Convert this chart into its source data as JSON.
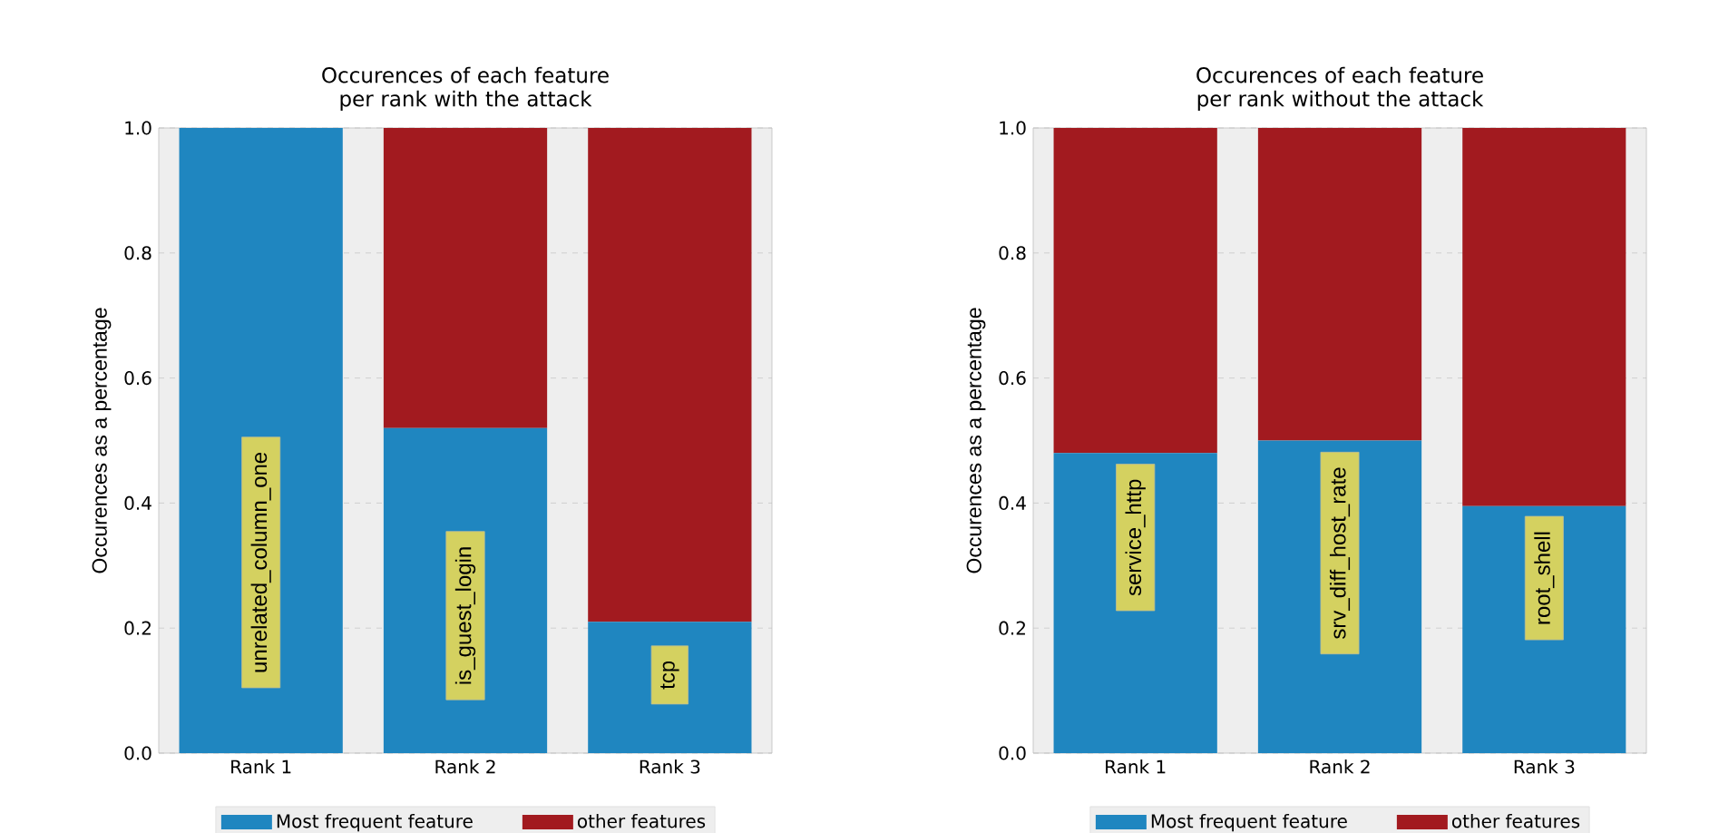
{
  "chart_data": [
    {
      "type": "bar",
      "stacked": true,
      "title": "Occurences of each feature per rank with the attack",
      "ylabel": "Occurences as a percentage",
      "categories": [
        "Rank 1",
        "Rank 2",
        "Rank 3"
      ],
      "series": [
        {
          "name": "Most frequent feature",
          "color": "#1f86c0",
          "values": [
            1.0,
            0.52,
            0.21
          ]
        },
        {
          "name": "other features",
          "color": "#a21a1f",
          "values": [
            0.0,
            0.48,
            0.79
          ]
        }
      ],
      "ylim": [
        0,
        1
      ],
      "yticks": [
        {
          "value": 0,
          "label": "0.0"
        },
        {
          "value": 0.2,
          "label": "0.2"
        },
        {
          "value": 0.4,
          "label": "0.4"
        },
        {
          "value": 0.6,
          "label": "0.6"
        },
        {
          "value": 0.8,
          "label": "0.8"
        },
        {
          "value": 1,
          "label": "1.0"
        }
      ],
      "annotations": [
        "unrelated_column_one",
        "is_guest_login",
        "tcp"
      ],
      "grid": true,
      "legend": "bottom"
    },
    {
      "type": "bar",
      "stacked": true,
      "title": "Occurences of each feature per rank without the attack",
      "ylabel": "Occurences as a percentage",
      "categories": [
        "Rank 1",
        "Rank 2",
        "Rank 3"
      ],
      "series": [
        {
          "name": "Most frequent feature",
          "color": "#1f86c0",
          "values": [
            0.48,
            0.5,
            0.395
          ]
        },
        {
          "name": "other features",
          "color": "#a21a1f",
          "values": [
            0.52,
            0.5,
            0.605
          ]
        }
      ],
      "ylim": [
        0,
        1
      ],
      "yticks": [
        {
          "value": 0,
          "label": "0.0"
        },
        {
          "value": 0.2,
          "label": "0.2"
        },
        {
          "value": 0.4,
          "label": "0.4"
        },
        {
          "value": 0.6,
          "label": "0.6"
        },
        {
          "value": 0.8,
          "label": "0.8"
        },
        {
          "value": 1,
          "label": "1.0"
        }
      ],
      "annotations": [
        "service_http",
        "srv_diff_host_rate",
        "root_shell"
      ],
      "grid": true,
      "legend": "bottom"
    }
  ]
}
